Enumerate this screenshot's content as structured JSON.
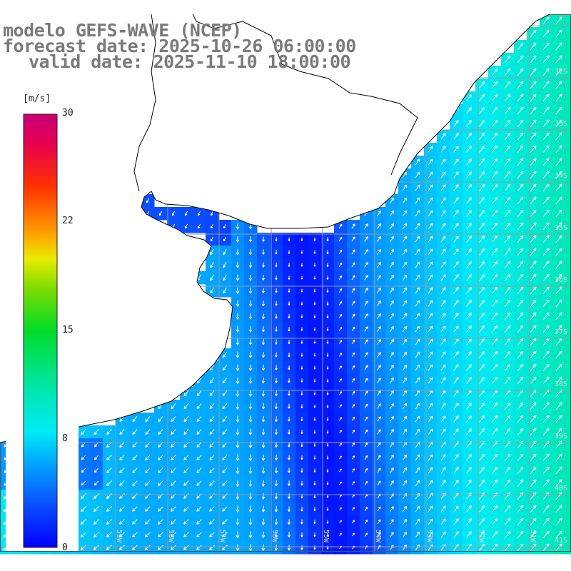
{
  "title": {
    "line1": "modelo GEFS-WAVE (NCEP)",
    "line2": "forecast date: 2025-10-26 06:00:00",
    "line3": "valid date: 2025-11-10 18:00:00"
  },
  "colorbar": {
    "units": "[m/s]",
    "min": 0,
    "max": 30,
    "ticks": [
      "30",
      "22",
      "15",
      "8",
      "0"
    ],
    "tick_values": [
      30,
      22,
      15,
      8,
      0
    ],
    "colors": [
      "#0000ff",
      "#0a55ff",
      "#00b4ff",
      "#00f0f0",
      "#00e6a0",
      "#00dc28",
      "#7adc00",
      "#e6e600",
      "#ffb400",
      "#ff6400",
      "#ff1e00",
      "#e6004b",
      "#c80078"
    ]
  },
  "map": {
    "lat_labels": [
      "32S",
      "33S",
      "34S",
      "35S",
      "36S",
      "37S",
      "38S",
      "39S",
      "40S",
      "41S"
    ],
    "lon_labels": [
      "60W",
      "59W",
      "58W",
      "57W",
      "56W",
      "55W",
      "54W",
      "53W",
      "52W",
      "51W"
    ],
    "lat_range": [
      -41.7,
      -31.3
    ],
    "lon_range": [
      -61.0,
      -50.0
    ],
    "gridlines": true,
    "land_color": "#ffffff",
    "coast_color": "#000000",
    "grid_color": "#9a9a9a"
  },
  "field": {
    "variable": "wind speed",
    "description_units": "m/s",
    "notes": "gridded wind speed with direction arrows over ocean"
  }
}
